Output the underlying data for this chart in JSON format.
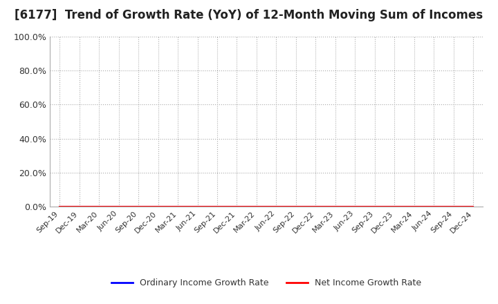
{
  "title": "[6177]  Trend of Growth Rate (YoY) of 12-Month Moving Sum of Incomes",
  "title_fontsize": 12,
  "ylim": [
    0.0,
    1.0
  ],
  "yticks": [
    0.0,
    0.2,
    0.4,
    0.6,
    0.8,
    1.0
  ],
  "ytick_labels": [
    "0.0%",
    "20.0%",
    "40.0%",
    "60.0%",
    "80.0%",
    "100.0%"
  ],
  "x_labels": [
    "Sep-19",
    "Dec-19",
    "Mar-20",
    "Jun-20",
    "Sep-20",
    "Dec-20",
    "Mar-21",
    "Jun-21",
    "Sep-21",
    "Dec-21",
    "Mar-22",
    "Jun-22",
    "Sep-22",
    "Dec-22",
    "Mar-23",
    "Jun-23",
    "Sep-23",
    "Dec-23",
    "Mar-24",
    "Jun-24",
    "Sep-24",
    "Dec-24"
  ],
  "ordinary_income": [
    0,
    0,
    0,
    0,
    0,
    0,
    0,
    0,
    0,
    0,
    0,
    0,
    0,
    0,
    0,
    0,
    0,
    0,
    0,
    0,
    0,
    0
  ],
  "net_income": [
    0,
    0,
    0,
    0,
    0,
    0,
    0,
    0,
    0,
    0,
    0,
    0,
    0,
    0,
    0,
    0,
    0,
    0,
    0,
    0,
    0,
    0
  ],
  "ordinary_color": "#0000FF",
  "net_color": "#FF0000",
  "background_color": "#FFFFFF",
  "plot_bg_color": "#FFFFFF",
  "grid_color": "#AAAAAA",
  "legend_ordinary": "Ordinary Income Growth Rate",
  "legend_net": "Net Income Growth Rate",
  "line_width": 1.5,
  "tick_label_color": "#333333",
  "title_color": "#222222",
  "spine_color": "#AAAAAA"
}
